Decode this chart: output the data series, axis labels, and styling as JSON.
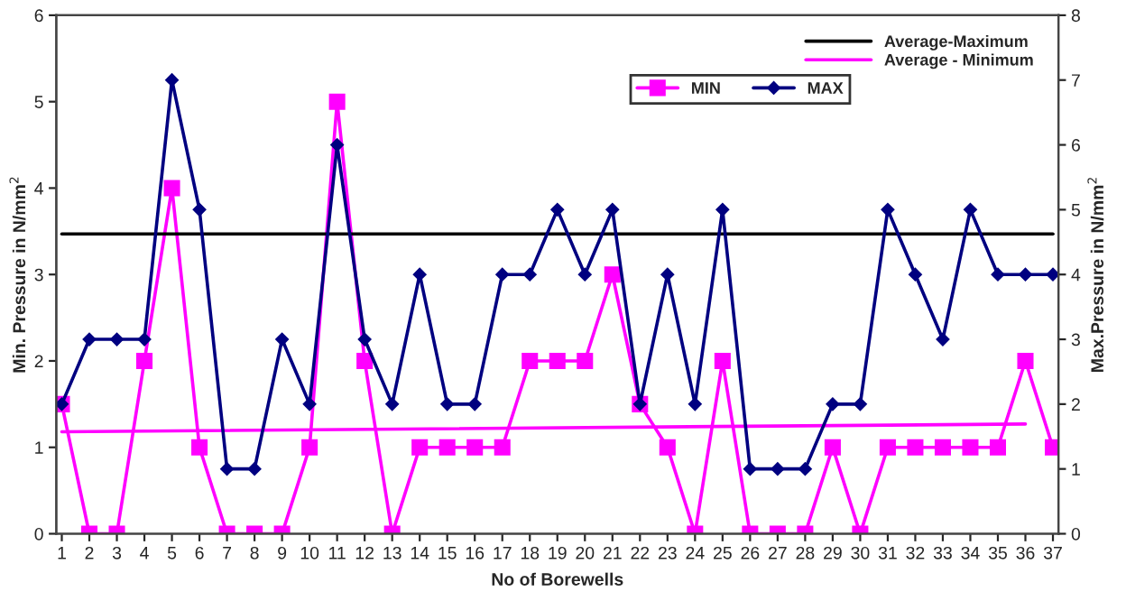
{
  "chart_data": {
    "type": "line",
    "xlabel": "No of Borewells",
    "ylabel": "Min. Pressure in N/mm$^{2}$",
    "y2label": "Max.Pressure in N/mm$^{2}$",
    "categories": [
      "1",
      "2",
      "3",
      "4",
      "5",
      "6",
      "7",
      "8",
      "9",
      "10",
      "11",
      "12",
      "13",
      "14",
      "15",
      "16",
      "17",
      "18",
      "19",
      "20",
      "21",
      "22",
      "23",
      "24",
      "25",
      "26",
      "27",
      "28",
      "29",
      "30",
      "31",
      "32",
      "33",
      "34",
      "35",
      "36",
      "37"
    ],
    "ylim": [
      0,
      6
    ],
    "yticks": [
      0,
      1,
      2,
      3,
      4,
      5,
      6
    ],
    "y2lim": [
      0,
      8
    ],
    "y2ticks": [
      0,
      1,
      2,
      3,
      4,
      5,
      6,
      7,
      8
    ],
    "grid": false,
    "legend": "top right",
    "series": [
      {
        "name": "MIN",
        "color": "#ff00ff",
        "marker": "square",
        "values": [
          1.5,
          0,
          0,
          2,
          4,
          1,
          0,
          0,
          0,
          1,
          5,
          2,
          0,
          1,
          1,
          1,
          1,
          2,
          2,
          2,
          3,
          1.5,
          1,
          0,
          2,
          0,
          0,
          0,
          1,
          0,
          1,
          1,
          1,
          1,
          1,
          2,
          1
        ]
      },
      {
        "name": "MAX",
        "color": "#000080",
        "marker": "diamond",
        "axis": "y2",
        "values": [
          2,
          3,
          3,
          3,
          7,
          5,
          1,
          1,
          3,
          2,
          6,
          3,
          2,
          4,
          2,
          2,
          4,
          4,
          5,
          4,
          5,
          2,
          4,
          2,
          5,
          1,
          1,
          1,
          2,
          2,
          5,
          4,
          3,
          5,
          4,
          4,
          4
        ]
      },
      {
        "name": "Average-Maximum",
        "color": "#000000",
        "marker": "none",
        "x": [
          "1",
          "37"
        ],
        "values": [
          3.47,
          3.47
        ]
      },
      {
        "name": "Average - Minimum",
        "color": "#ff00ff",
        "marker": "none",
        "x": [
          "1",
          "36"
        ],
        "values": [
          1.18,
          1.27
        ]
      }
    ]
  }
}
